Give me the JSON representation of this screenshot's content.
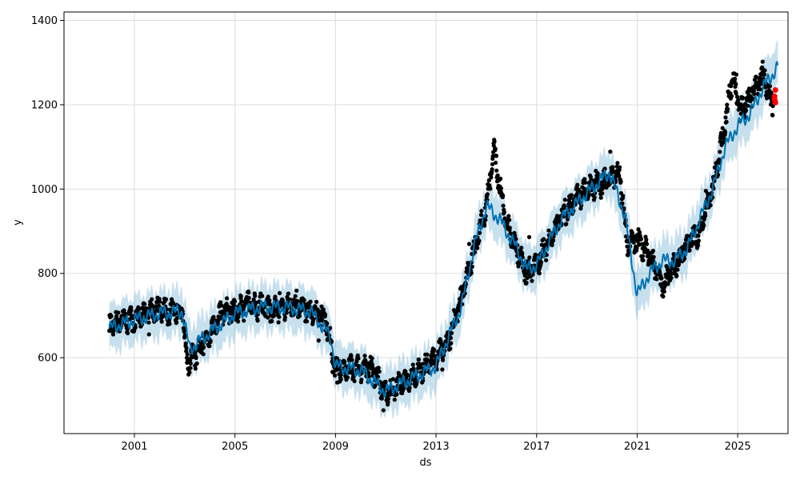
{
  "chart_data": {
    "type": "scatter",
    "title": "",
    "xlabel": "ds",
    "ylabel": "y",
    "xlim": [
      1998.2,
      2027.0
    ],
    "ylim": [
      420,
      1420
    ],
    "grid": true,
    "x_ticks": [
      2001,
      2005,
      2009,
      2013,
      2017,
      2021,
      2025
    ],
    "x_tick_labels": [
      "2001",
      "2005",
      "2009",
      "2013",
      "2017",
      "2021",
      "2025"
    ],
    "y_ticks": [
      600,
      800,
      1000,
      1200,
      1400
    ],
    "y_tick_labels": [
      "600",
      "800",
      "1000",
      "1200",
      "1400"
    ],
    "colors": {
      "observed": "#000000",
      "forecast": "#0072B2",
      "uncertainty": "#0072B2",
      "test_points": "#ff0000",
      "grid": "#dddddd"
    },
    "observed_anchors": [
      {
        "x": 2000.0,
        "y": 670
      },
      {
        "x": 2000.5,
        "y": 690
      },
      {
        "x": 2001.0,
        "y": 690
      },
      {
        "x": 2001.5,
        "y": 710
      },
      {
        "x": 2002.0,
        "y": 715
      },
      {
        "x": 2002.5,
        "y": 705
      },
      {
        "x": 2002.9,
        "y": 715
      },
      {
        "x": 2003.1,
        "y": 590
      },
      {
        "x": 2003.5,
        "y": 610
      },
      {
        "x": 2004.0,
        "y": 660
      },
      {
        "x": 2004.5,
        "y": 710
      },
      {
        "x": 2005.0,
        "y": 710
      },
      {
        "x": 2005.5,
        "y": 730
      },
      {
        "x": 2006.0,
        "y": 720
      },
      {
        "x": 2006.5,
        "y": 710
      },
      {
        "x": 2007.0,
        "y": 720
      },
      {
        "x": 2007.5,
        "y": 725
      },
      {
        "x": 2008.0,
        "y": 710
      },
      {
        "x": 2008.6,
        "y": 695
      },
      {
        "x": 2009.0,
        "y": 570
      },
      {
        "x": 2009.5,
        "y": 575
      },
      {
        "x": 2010.0,
        "y": 575
      },
      {
        "x": 2010.5,
        "y": 570
      },
      {
        "x": 2011.0,
        "y": 515
      },
      {
        "x": 2011.5,
        "y": 535
      },
      {
        "x": 2012.0,
        "y": 555
      },
      {
        "x": 2012.5,
        "y": 575
      },
      {
        "x": 2013.0,
        "y": 600
      },
      {
        "x": 2013.5,
        "y": 640
      },
      {
        "x": 2014.0,
        "y": 740
      },
      {
        "x": 2014.5,
        "y": 850
      },
      {
        "x": 2015.0,
        "y": 960
      },
      {
        "x": 2015.3,
        "y": 1090
      },
      {
        "x": 2015.8,
        "y": 920
      },
      {
        "x": 2016.2,
        "y": 860
      },
      {
        "x": 2016.6,
        "y": 800
      },
      {
        "x": 2017.0,
        "y": 820
      },
      {
        "x": 2017.5,
        "y": 880
      },
      {
        "x": 2018.0,
        "y": 930
      },
      {
        "x": 2018.5,
        "y": 970
      },
      {
        "x": 2019.0,
        "y": 1000
      },
      {
        "x": 2019.5,
        "y": 1010
      },
      {
        "x": 2020.0,
        "y": 1030
      },
      {
        "x": 2020.3,
        "y": 1040
      },
      {
        "x": 2020.6,
        "y": 870
      },
      {
        "x": 2021.0,
        "y": 880
      },
      {
        "x": 2021.5,
        "y": 840
      },
      {
        "x": 2021.8,
        "y": 800
      },
      {
        "x": 2022.0,
        "y": 770
      },
      {
        "x": 2022.5,
        "y": 820
      },
      {
        "x": 2023.0,
        "y": 870
      },
      {
        "x": 2023.5,
        "y": 900
      },
      {
        "x": 2024.0,
        "y": 1000
      },
      {
        "x": 2024.4,
        "y": 1120
      },
      {
        "x": 2024.8,
        "y": 1270
      },
      {
        "x": 2025.1,
        "y": 1180
      },
      {
        "x": 2025.5,
        "y": 1220
      },
      {
        "x": 2026.0,
        "y": 1270
      },
      {
        "x": 2026.4,
        "y": 1200
      }
    ],
    "forecast_anchors": [
      {
        "x": 2000.0,
        "y": 670
      },
      {
        "x": 2001.0,
        "y": 690
      },
      {
        "x": 2002.0,
        "y": 705
      },
      {
        "x": 2002.9,
        "y": 710
      },
      {
        "x": 2003.2,
        "y": 620
      },
      {
        "x": 2004.0,
        "y": 660
      },
      {
        "x": 2005.0,
        "y": 705
      },
      {
        "x": 2006.0,
        "y": 720
      },
      {
        "x": 2007.0,
        "y": 720
      },
      {
        "x": 2008.0,
        "y": 710
      },
      {
        "x": 2008.8,
        "y": 650
      },
      {
        "x": 2009.0,
        "y": 580
      },
      {
        "x": 2010.0,
        "y": 570
      },
      {
        "x": 2011.0,
        "y": 520
      },
      {
        "x": 2012.0,
        "y": 550
      },
      {
        "x": 2013.0,
        "y": 580
      },
      {
        "x": 2014.0,
        "y": 720
      },
      {
        "x": 2014.5,
        "y": 860
      },
      {
        "x": 2015.0,
        "y": 960
      },
      {
        "x": 2015.5,
        "y": 930
      },
      {
        "x": 2016.2,
        "y": 860
      },
      {
        "x": 2016.6,
        "y": 810
      },
      {
        "x": 2017.0,
        "y": 820
      },
      {
        "x": 2018.0,
        "y": 930
      },
      {
        "x": 2019.0,
        "y": 990
      },
      {
        "x": 2019.9,
        "y": 1040
      },
      {
        "x": 2020.5,
        "y": 940
      },
      {
        "x": 2021.0,
        "y": 750
      },
      {
        "x": 2021.5,
        "y": 800
      },
      {
        "x": 2022.0,
        "y": 830
      },
      {
        "x": 2022.5,
        "y": 830
      },
      {
        "x": 2023.0,
        "y": 860
      },
      {
        "x": 2024.0,
        "y": 1000
      },
      {
        "x": 2024.5,
        "y": 1100
      },
      {
        "x": 2025.0,
        "y": 1150
      },
      {
        "x": 2025.5,
        "y": 1180
      },
      {
        "x": 2026.0,
        "y": 1240
      },
      {
        "x": 2026.6,
        "y": 1290
      }
    ],
    "uncertainty_halfwidth": 55,
    "seasonal_amplitude": 20,
    "test_points": [
      {
        "x": 2026.5,
        "y": 1235
      },
      {
        "x": 2026.46,
        "y": 1215
      },
      {
        "x": 2026.48,
        "y": 1210
      },
      {
        "x": 2026.5,
        "y": 1205
      },
      {
        "x": 2026.47,
        "y": 1220
      }
    ]
  }
}
